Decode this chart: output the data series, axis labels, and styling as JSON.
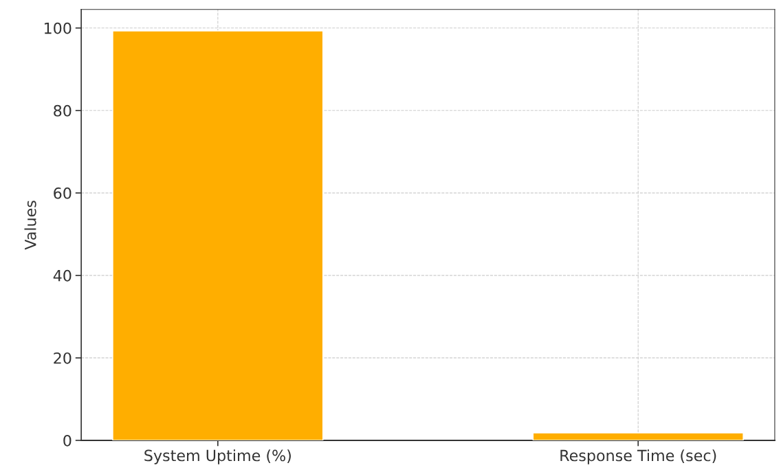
{
  "chart_data": {
    "type": "bar",
    "ylabel": "Values",
    "categories": [
      "System Uptime (%)",
      "Response Time (sec)"
    ],
    "values": [
      99.3,
      1.8
    ],
    "color": "#ffae00",
    "ylim": [
      0,
      104.5
    ],
    "yticks": [
      0,
      20,
      40,
      60,
      80,
      100
    ],
    "grid": true
  }
}
